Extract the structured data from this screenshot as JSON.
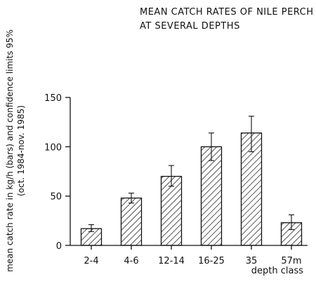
{
  "chart_data": {
    "type": "bar",
    "title_lines": [
      "MEAN CATCH RATES OF NILE PERCH",
      "AT SEVERAL DEPTHS"
    ],
    "ylabel_lines": [
      "mean catch rate in kg/h (bars) and confidence limits 95%",
      "(oct. 1984-nov. 1985)"
    ],
    "xlabel": "depth class",
    "categories": [
      "2-4",
      "4-6",
      "12-14",
      "16-25",
      "35",
      "57m"
    ],
    "values": [
      17,
      48,
      70,
      100,
      114,
      23
    ],
    "ci_low": [
      14,
      43,
      60,
      86,
      95,
      16
    ],
    "ci_high": [
      21,
      53,
      81,
      114,
      131,
      31
    ],
    "ylim": [
      0,
      150
    ],
    "yticks": [
      0,
      50,
      100,
      150
    ],
    "bar_fill": "diagonal-hatch",
    "grid": false
  }
}
